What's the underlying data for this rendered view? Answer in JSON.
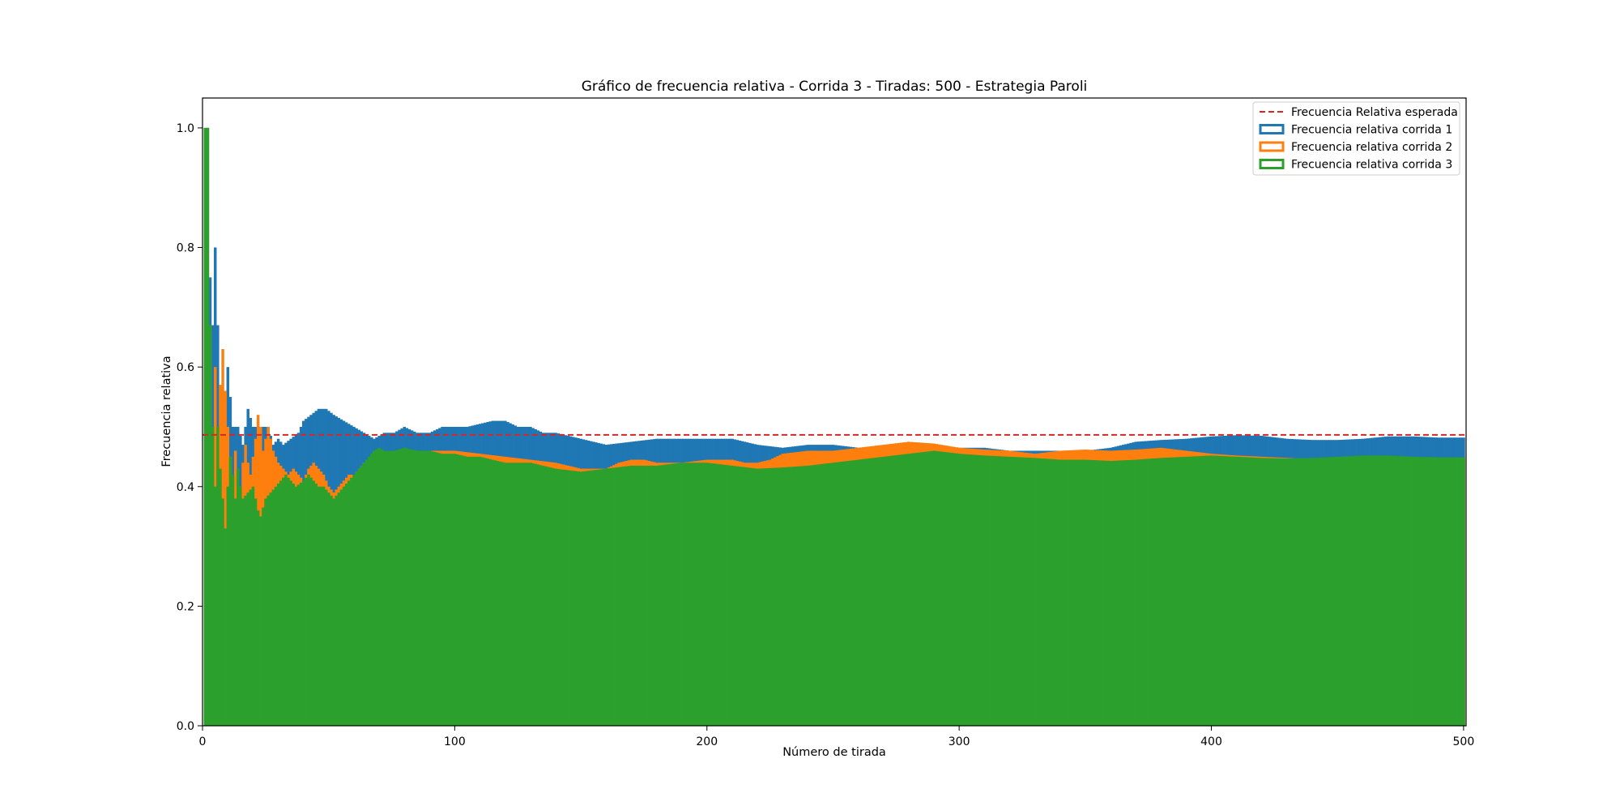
{
  "chart_data": {
    "type": "bar",
    "title": "Gráfico de frecuencia relativa - Corrida 3 - Tiradas: 500 - Estrategia Paroli",
    "xlabel": "Número de tirada",
    "ylabel": "Frecuencia relativa",
    "xlim": [
      0,
      501
    ],
    "ylim": [
      0,
      1.05
    ],
    "xticks": [
      0,
      100,
      200,
      300,
      400,
      500
    ],
    "yticks": [
      0.0,
      0.2,
      0.4,
      0.6,
      0.8,
      1.0
    ],
    "xtick_labels": [
      "0",
      "100",
      "200",
      "300",
      "400",
      "500"
    ],
    "ytick_labels": [
      "0.0",
      "0.2",
      "0.4",
      "0.6",
      "0.8",
      "1.0"
    ],
    "grid": false,
    "legend_position": "top-right",
    "expected_line": {
      "name": "Frecuencia Relativa esperada",
      "value": 0.4865,
      "color": "#d62728",
      "style": "dashed"
    },
    "series": [
      {
        "name": "Frecuencia relativa corrida 1",
        "color": "#1f77b4",
        "keypoints": [
          [
            1,
            1.0
          ],
          [
            2,
            1.0
          ],
          [
            3,
            0.75
          ],
          [
            4,
            0.67
          ],
          [
            5,
            0.8
          ],
          [
            6,
            0.67
          ],
          [
            7,
            0.57
          ],
          [
            8,
            0.5
          ],
          [
            9,
            0.56
          ],
          [
            10,
            0.6
          ],
          [
            11,
            0.55
          ],
          [
            12,
            0.5
          ],
          [
            14,
            0.5
          ],
          [
            16,
            0.47
          ],
          [
            18,
            0.53
          ],
          [
            20,
            0.5
          ],
          [
            22,
            0.5
          ],
          [
            24,
            0.5
          ],
          [
            26,
            0.5
          ],
          [
            28,
            0.47
          ],
          [
            30,
            0.48
          ],
          [
            32,
            0.47
          ],
          [
            35,
            0.48
          ],
          [
            38,
            0.49
          ],
          [
            40,
            0.51
          ],
          [
            43,
            0.52
          ],
          [
            46,
            0.53
          ],
          [
            49,
            0.53
          ],
          [
            52,
            0.52
          ],
          [
            56,
            0.51
          ],
          [
            60,
            0.5
          ],
          [
            64,
            0.49
          ],
          [
            68,
            0.48
          ],
          [
            72,
            0.49
          ],
          [
            76,
            0.49
          ],
          [
            80,
            0.5
          ],
          [
            85,
            0.49
          ],
          [
            90,
            0.49
          ],
          [
            95,
            0.5
          ],
          [
            100,
            0.5
          ],
          [
            105,
            0.5
          ],
          [
            110,
            0.505
          ],
          [
            115,
            0.51
          ],
          [
            120,
            0.51
          ],
          [
            125,
            0.5
          ],
          [
            130,
            0.5
          ],
          [
            135,
            0.49
          ],
          [
            140,
            0.49
          ],
          [
            145,
            0.485
          ],
          [
            150,
            0.48
          ],
          [
            155,
            0.475
          ],
          [
            160,
            0.47
          ],
          [
            170,
            0.475
          ],
          [
            180,
            0.48
          ],
          [
            190,
            0.48
          ],
          [
            200,
            0.48
          ],
          [
            210,
            0.48
          ],
          [
            220,
            0.47
          ],
          [
            230,
            0.465
          ],
          [
            240,
            0.47
          ],
          [
            250,
            0.47
          ],
          [
            260,
            0.465
          ],
          [
            270,
            0.465
          ],
          [
            280,
            0.47
          ],
          [
            290,
            0.47
          ],
          [
            300,
            0.465
          ],
          [
            310,
            0.465
          ],
          [
            320,
            0.46
          ],
          [
            330,
            0.46
          ],
          [
            340,
            0.46
          ],
          [
            350,
            0.46
          ],
          [
            360,
            0.465
          ],
          [
            370,
            0.475
          ],
          [
            380,
            0.478
          ],
          [
            390,
            0.48
          ],
          [
            400,
            0.484
          ],
          [
            410,
            0.486
          ],
          [
            420,
            0.485
          ],
          [
            430,
            0.48
          ],
          [
            440,
            0.478
          ],
          [
            450,
            0.478
          ],
          [
            460,
            0.48
          ],
          [
            470,
            0.484
          ],
          [
            480,
            0.484
          ],
          [
            490,
            0.482
          ],
          [
            500,
            0.482
          ]
        ]
      },
      {
        "name": "Frecuencia relativa corrida 2",
        "color": "#ff7f0e",
        "keypoints": [
          [
            1,
            1.0
          ],
          [
            2,
            1.0
          ],
          [
            3,
            0.67
          ],
          [
            4,
            0.5
          ],
          [
            5,
            0.6
          ],
          [
            6,
            0.5
          ],
          [
            7,
            0.57
          ],
          [
            8,
            0.63
          ],
          [
            9,
            0.56
          ],
          [
            10,
            0.5
          ],
          [
            11,
            0.45
          ],
          [
            12,
            0.42
          ],
          [
            13,
            0.46
          ],
          [
            14,
            0.43
          ],
          [
            15,
            0.4
          ],
          [
            16,
            0.44
          ],
          [
            17,
            0.47
          ],
          [
            18,
            0.44
          ],
          [
            19,
            0.42
          ],
          [
            20,
            0.45
          ],
          [
            21,
            0.48
          ],
          [
            22,
            0.52
          ],
          [
            23,
            0.5
          ],
          [
            24,
            0.46
          ],
          [
            25,
            0.48
          ],
          [
            26,
            0.5
          ],
          [
            27,
            0.48
          ],
          [
            28,
            0.46
          ],
          [
            30,
            0.44
          ],
          [
            32,
            0.43
          ],
          [
            34,
            0.42
          ],
          [
            36,
            0.43
          ],
          [
            38,
            0.42
          ],
          [
            40,
            0.41
          ],
          [
            42,
            0.43
          ],
          [
            44,
            0.44
          ],
          [
            46,
            0.43
          ],
          [
            48,
            0.42
          ],
          [
            50,
            0.4
          ],
          [
            52,
            0.39
          ],
          [
            54,
            0.4
          ],
          [
            56,
            0.41
          ],
          [
            58,
            0.42
          ],
          [
            60,
            0.42
          ],
          [
            62,
            0.43
          ],
          [
            64,
            0.44
          ],
          [
            66,
            0.44
          ],
          [
            68,
            0.46
          ],
          [
            70,
            0.46
          ],
          [
            75,
            0.46
          ],
          [
            80,
            0.46
          ],
          [
            90,
            0.46
          ],
          [
            100,
            0.46
          ],
          [
            110,
            0.455
          ],
          [
            120,
            0.45
          ],
          [
            130,
            0.445
          ],
          [
            140,
            0.44
          ],
          [
            150,
            0.43
          ],
          [
            155,
            0.43
          ],
          [
            160,
            0.43
          ],
          [
            165,
            0.44
          ],
          [
            170,
            0.445
          ],
          [
            175,
            0.445
          ],
          [
            180,
            0.44
          ],
          [
            190,
            0.44
          ],
          [
            200,
            0.445
          ],
          [
            210,
            0.445
          ],
          [
            215,
            0.44
          ],
          [
            220,
            0.44
          ],
          [
            225,
            0.445
          ],
          [
            230,
            0.455
          ],
          [
            240,
            0.46
          ],
          [
            250,
            0.46
          ],
          [
            260,
            0.465
          ],
          [
            270,
            0.47
          ],
          [
            280,
            0.475
          ],
          [
            290,
            0.472
          ],
          [
            300,
            0.465
          ],
          [
            310,
            0.462
          ],
          [
            320,
            0.46
          ],
          [
            330,
            0.455
          ],
          [
            340,
            0.46
          ],
          [
            350,
            0.462
          ],
          [
            360,
            0.46
          ],
          [
            370,
            0.462
          ],
          [
            380,
            0.465
          ],
          [
            390,
            0.46
          ],
          [
            400,
            0.455
          ],
          [
            410,
            0.452
          ],
          [
            420,
            0.45
          ],
          [
            430,
            0.448
          ],
          [
            440,
            0.446
          ],
          [
            450,
            0.446
          ],
          [
            460,
            0.448
          ],
          [
            470,
            0.448
          ],
          [
            480,
            0.448
          ],
          [
            490,
            0.448
          ],
          [
            500,
            0.448
          ]
        ]
      },
      {
        "name": "Frecuencia relativa corrida 3",
        "color": "#2ca02c",
        "keypoints": [
          [
            1,
            1.0
          ],
          [
            2,
            1.0
          ],
          [
            3,
            0.67
          ],
          [
            4,
            0.5
          ],
          [
            5,
            0.4
          ],
          [
            6,
            0.5
          ],
          [
            7,
            0.43
          ],
          [
            8,
            0.38
          ],
          [
            9,
            0.33
          ],
          [
            10,
            0.4
          ],
          [
            11,
            0.45
          ],
          [
            12,
            0.42
          ],
          [
            13,
            0.38
          ],
          [
            14,
            0.43
          ],
          [
            15,
            0.4
          ],
          [
            16,
            0.38
          ],
          [
            18,
            0.39
          ],
          [
            20,
            0.4
          ],
          [
            22,
            0.36
          ],
          [
            23,
            0.35
          ],
          [
            25,
            0.38
          ],
          [
            27,
            0.39
          ],
          [
            29,
            0.4
          ],
          [
            31,
            0.41
          ],
          [
            33,
            0.42
          ],
          [
            35,
            0.41
          ],
          [
            37,
            0.4
          ],
          [
            40,
            0.41
          ],
          [
            42,
            0.42
          ],
          [
            44,
            0.41
          ],
          [
            46,
            0.4
          ],
          [
            48,
            0.4
          ],
          [
            50,
            0.39
          ],
          [
            52,
            0.38
          ],
          [
            54,
            0.39
          ],
          [
            56,
            0.4
          ],
          [
            58,
            0.41
          ],
          [
            60,
            0.42
          ],
          [
            62,
            0.43
          ],
          [
            64,
            0.44
          ],
          [
            66,
            0.45
          ],
          [
            68,
            0.46
          ],
          [
            70,
            0.465
          ],
          [
            72,
            0.46
          ],
          [
            76,
            0.46
          ],
          [
            80,
            0.465
          ],
          [
            85,
            0.46
          ],
          [
            90,
            0.46
          ],
          [
            95,
            0.455
          ],
          [
            100,
            0.455
          ],
          [
            105,
            0.45
          ],
          [
            110,
            0.45
          ],
          [
            115,
            0.445
          ],
          [
            120,
            0.44
          ],
          [
            130,
            0.44
          ],
          [
            140,
            0.43
          ],
          [
            150,
            0.425
          ],
          [
            160,
            0.43
          ],
          [
            170,
            0.435
          ],
          [
            180,
            0.435
          ],
          [
            190,
            0.44
          ],
          [
            200,
            0.44
          ],
          [
            210,
            0.435
          ],
          [
            220,
            0.43
          ],
          [
            230,
            0.432
          ],
          [
            240,
            0.435
          ],
          [
            250,
            0.44
          ],
          [
            260,
            0.445
          ],
          [
            270,
            0.45
          ],
          [
            280,
            0.455
          ],
          [
            290,
            0.46
          ],
          [
            300,
            0.455
          ],
          [
            310,
            0.452
          ],
          [
            320,
            0.45
          ],
          [
            330,
            0.448
          ],
          [
            340,
            0.445
          ],
          [
            350,
            0.445
          ],
          [
            360,
            0.443
          ],
          [
            370,
            0.445
          ],
          [
            380,
            0.448
          ],
          [
            390,
            0.45
          ],
          [
            400,
            0.452
          ],
          [
            410,
            0.45
          ],
          [
            420,
            0.448
          ],
          [
            430,
            0.447
          ],
          [
            440,
            0.448
          ],
          [
            450,
            0.45
          ],
          [
            460,
            0.452
          ],
          [
            470,
            0.452
          ],
          [
            480,
            0.45
          ],
          [
            490,
            0.449
          ],
          [
            500,
            0.449
          ]
        ]
      }
    ]
  }
}
